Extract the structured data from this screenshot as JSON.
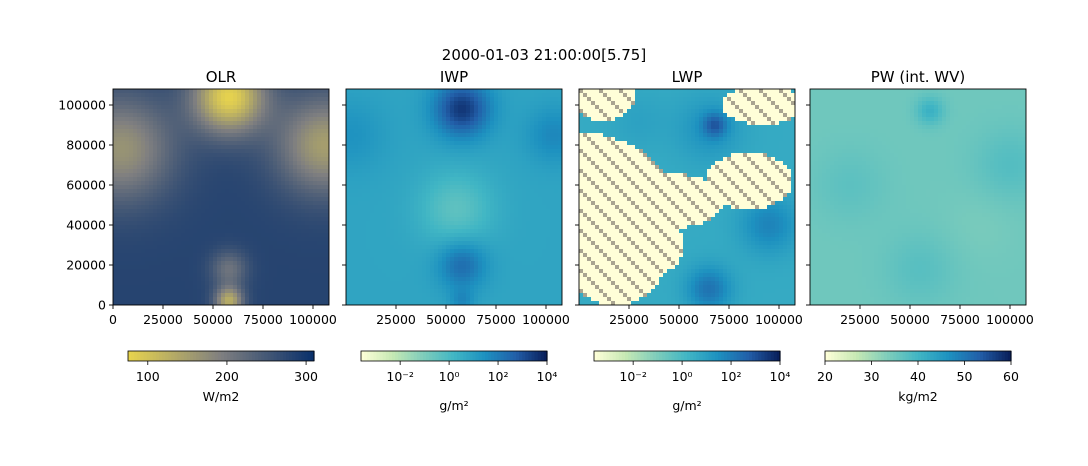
{
  "figure": {
    "title": "2000-01-03 21:00:00[5.75]"
  },
  "chart_data": [
    {
      "type": "heatmap",
      "title": "OLR",
      "xlim": [
        0,
        108000
      ],
      "ylim": [
        0,
        108000
      ],
      "xticks": [
        0,
        25000,
        50000,
        75000,
        100000
      ],
      "xtick_labels": [
        "0",
        "25000",
        "50000",
        "75000",
        "100000"
      ],
      "yticks": [
        0,
        20000,
        40000,
        60000,
        80000,
        100000
      ],
      "ytick_labels": [
        "0",
        "20000",
        "40000",
        "60000",
        "80000",
        "100000"
      ],
      "show_ytick_labels": true,
      "colormap": [
        "#e8d44d",
        "#7f7f80",
        "#08306b"
      ],
      "colorbar": {
        "label": "W/m2",
        "scale": "linear",
        "range": [
          75,
          310
        ],
        "ticks": [
          100,
          200,
          300
        ],
        "tick_labels": [
          "100",
          "200",
          "300"
        ]
      },
      "field": {
        "base": 280,
        "features": [
          {
            "x": 58000,
            "y": 104000,
            "value": 80,
            "radius": 18000
          },
          {
            "x": 4000,
            "y": 78000,
            "value": 165,
            "radius": 26000
          },
          {
            "x": 106000,
            "y": 80000,
            "value": 150,
            "radius": 24000
          },
          {
            "x": 58000,
            "y": 18000,
            "value": 210,
            "radius": 9000
          },
          {
            "x": 58000,
            "y": 2000,
            "value": 130,
            "radius": 7000
          }
        ]
      }
    },
    {
      "type": "heatmap",
      "title": "IWP",
      "xlim": [
        0,
        108000
      ],
      "ylim": [
        0,
        108000
      ],
      "xticks": [
        25000,
        50000,
        75000,
        100000
      ],
      "xtick_labels": [
        "25000",
        "50000",
        "75000",
        "100000"
      ],
      "yticks": [
        0,
        20000,
        40000,
        60000,
        80000,
        100000
      ],
      "ytick_labels": [
        "",
        "",
        "",
        "",
        "",
        ""
      ],
      "show_ytick_labels": false,
      "colormap": [
        "#ffffd9",
        "#c7e9b4",
        "#7fcdbb",
        "#41b6c4",
        "#1d91c0",
        "#225ea8",
        "#081d58"
      ],
      "colorbar": {
        "label": "g/m²",
        "scale": "log",
        "range": [
          -3.6,
          4
        ],
        "ticks": [
          -2,
          0,
          2,
          4
        ],
        "tick_labels": [
          "10⁻²",
          "10⁰",
          "10²",
          "10⁴"
        ]
      },
      "field": {
        "base": 0.8,
        "features": [
          {
            "x": 58000,
            "y": 98000,
            "value": 3.5,
            "radius": 14000
          },
          {
            "x": 104000,
            "y": 85000,
            "value": 1.7,
            "radius": 14000
          },
          {
            "x": 2000,
            "y": 85000,
            "value": 1.4,
            "radius": 18000
          },
          {
            "x": 58000,
            "y": 20000,
            "value": 2.4,
            "radius": 12000
          },
          {
            "x": 55000,
            "y": 48000,
            "value": -0.4,
            "radius": 18000
          },
          {
            "x": 58000,
            "y": 2000,
            "value": 1.6,
            "radius": 6000
          }
        ]
      }
    },
    {
      "type": "heatmap",
      "title": "LWP",
      "xlim": [
        0,
        108000
      ],
      "ylim": [
        0,
        108000
      ],
      "xticks": [
        25000,
        50000,
        75000,
        100000
      ],
      "xtick_labels": [
        "25000",
        "50000",
        "75000",
        "100000"
      ],
      "yticks": [
        0,
        20000,
        40000,
        60000,
        80000,
        100000
      ],
      "ytick_labels": [
        "",
        "",
        "",
        "",
        "",
        ""
      ],
      "show_ytick_labels": false,
      "colormap": [
        "#ffffd9",
        "#c7e9b4",
        "#7fcdbb",
        "#41b6c4",
        "#1d91c0",
        "#225ea8",
        "#081d58"
      ],
      "colorbar": {
        "label": "g/m²",
        "scale": "log",
        "range": [
          -3.6,
          4
        ],
        "ticks": [
          -2,
          0,
          2,
          4
        ],
        "tick_labels": [
          "10⁻²",
          "10⁰",
          "10²",
          "10⁴"
        ]
      },
      "field": {
        "base": 0.6,
        "features": [
          {
            "x": 65000,
            "y": 88000,
            "value": 1.4,
            "radius": 16000
          },
          {
            "x": 68000,
            "y": 90000,
            "value": 2.2,
            "radius": 6000
          },
          {
            "x": 95000,
            "y": 40000,
            "value": 1.8,
            "radius": 14000
          },
          {
            "x": 65000,
            "y": 8000,
            "value": 2.2,
            "radius": 11000
          },
          {
            "x": 30000,
            "y": 92000,
            "value": 0.9,
            "radius": 14000
          }
        ],
        "clear_sky": [
          {
            "x": 0,
            "y": 52000,
            "rx": 46000,
            "ry": 34000
          },
          {
            "x": 44000,
            "y": 52000,
            "rx": 28000,
            "ry": 14000
          },
          {
            "x": 85000,
            "y": 62000,
            "rx": 22000,
            "ry": 14000
          },
          {
            "x": 12000,
            "y": 104000,
            "rx": 16000,
            "ry": 12000
          },
          {
            "x": 92000,
            "y": 100000,
            "rx": 20000,
            "ry": 10000
          },
          {
            "x": 18000,
            "y": 20000,
            "rx": 24000,
            "ry": 20000
          },
          {
            "x": 40000,
            "y": 30000,
            "rx": 12000,
            "ry": 14000
          }
        ]
      }
    },
    {
      "type": "heatmap",
      "title": "PW (int. WV)",
      "xlim": [
        0,
        108000
      ],
      "ylim": [
        0,
        108000
      ],
      "xticks": [
        25000,
        50000,
        75000,
        100000
      ],
      "xtick_labels": [
        "25000",
        "50000",
        "75000",
        "100000"
      ],
      "yticks": [
        0,
        20000,
        40000,
        60000,
        80000,
        100000
      ],
      "ytick_labels": [
        "",
        "",
        "",
        "",
        "",
        ""
      ],
      "show_ytick_labels": false,
      "colormap": [
        "#ffffd9",
        "#c7e9b4",
        "#7fcdbb",
        "#41b6c4",
        "#1d91c0",
        "#225ea8",
        "#081d58"
      ],
      "colorbar": {
        "label": "kg/m2",
        "scale": "linear",
        "range": [
          20,
          60
        ],
        "ticks": [
          20,
          30,
          40,
          50,
          60
        ],
        "tick_labels": [
          "20",
          "30",
          "40",
          "50",
          "60"
        ]
      },
      "field": {
        "base": 35,
        "features": [
          {
            "x": 60000,
            "y": 97000,
            "value": 41,
            "radius": 7000
          },
          {
            "x": 100000,
            "y": 70000,
            "value": 38,
            "radius": 18000
          },
          {
            "x": 20000,
            "y": 60000,
            "value": 37,
            "radius": 18000
          },
          {
            "x": 55000,
            "y": 18000,
            "value": 37.5,
            "radius": 18000
          },
          {
            "x": 85000,
            "y": 40000,
            "value": 34,
            "radius": 18000
          }
        ]
      }
    }
  ]
}
